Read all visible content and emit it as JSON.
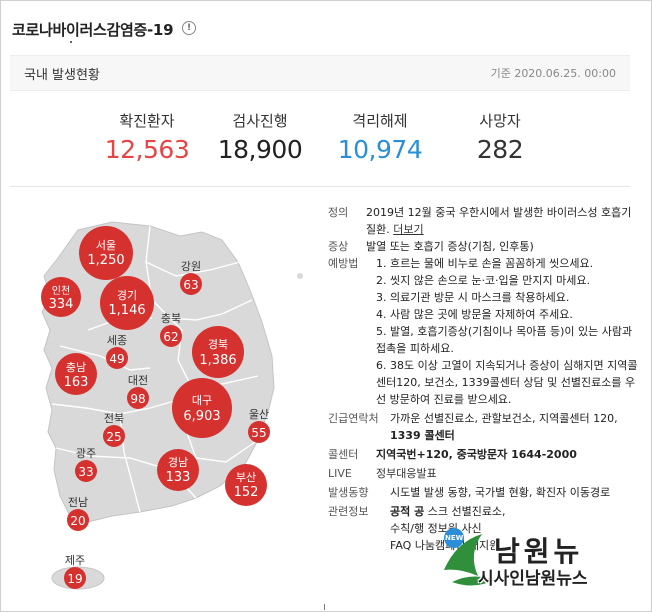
{
  "header": {
    "title": "코로나바이러스감염증-19",
    "info_icon": "!"
  },
  "subbar": {
    "title": "국내 발생현황",
    "date": "기준 2020.06.25. 00:00"
  },
  "stats": [
    {
      "label": "확진환자",
      "value": "12,563",
      "color": "#e64545"
    },
    {
      "label": "검사진행",
      "value": "18,900",
      "color": "#222222"
    },
    {
      "label": "격리해제",
      "value": "10,974",
      "color": "#2a8fd8"
    },
    {
      "label": "사망자",
      "value": "282",
      "color": "#333333"
    }
  ],
  "regions": [
    {
      "name": "서울",
      "count": "1,250",
      "big": true
    },
    {
      "name": "인천",
      "count": "334",
      "big": true
    },
    {
      "name": "경기",
      "count": "1,146",
      "big": true
    },
    {
      "name": "강원",
      "count": "63",
      "big": false
    },
    {
      "name": "충북",
      "count": "62",
      "big": false
    },
    {
      "name": "세종",
      "count": "49",
      "big": false
    },
    {
      "name": "경북",
      "count": "1,386",
      "big": true
    },
    {
      "name": "충남",
      "count": "163",
      "big": true
    },
    {
      "name": "대전",
      "count": "98",
      "big": false
    },
    {
      "name": "대구",
      "count": "6,903",
      "big": true
    },
    {
      "name": "전북",
      "count": "25",
      "big": false
    },
    {
      "name": "울산",
      "count": "55",
      "big": false
    },
    {
      "name": "광주",
      "count": "33",
      "big": false
    },
    {
      "name": "경남",
      "count": "133",
      "big": true
    },
    {
      "name": "부산",
      "count": "152",
      "big": true
    },
    {
      "name": "전남",
      "count": "20",
      "big": false
    },
    {
      "name": "제주",
      "count": "19",
      "big": false
    }
  ],
  "info": {
    "definition_key": "정의",
    "definition": "2019년 12월 중국 우한시에서 발생한 바이러스성 호흡기 질환.",
    "more_link": "더보기",
    "symptom_key": "증상",
    "symptom": "발열 또는 호흡기 증상(기침, 인후통)",
    "prevention_key": "예방법",
    "prevention": [
      "1. 흐르는 물에 비누로 손을 꼼꼼하게 씻으세요.",
      "2. 씻지 않은 손으로 눈·코·입을 만지지 마세요.",
      "3. 의료기관 방문 시 마스크를 착용하세요.",
      "4. 사람 많은 곳에 방문을 자제하여 주세요.",
      "5. 발열, 호흡기증상(기침이나 목아픔 등)이 있는 사람과 접촉을 피하세요.",
      "6. 38도 이상 고열이 지속되거나 증상이 심해지면 지역콜센터120, 보건소, 1339콜센터 상담 및 선별진료소를 우선 방문하여 진료를 받으세요."
    ],
    "emergency_key": "긴급연락처",
    "emergency": "가까운 선별진료소, 관할보건소, 지역콜센터 120,",
    "emergency_bold": "1339 콜센터",
    "callcenter_key": "콜센터",
    "callcenter": "지역국번+120, 중국방문자 1644-2000",
    "live_key": "LIVE",
    "live": "정부대응발표",
    "trend_key": "발생동향",
    "trend": "시도별 발생 동향, 국가별 현황, 확진자 이동경로",
    "related_key": "관련정보",
    "related_bold": "공적 공",
    "related_1": "스크 ",
    "related_2": " 선별진료소,",
    "related_3": "수칙/행",
    "related_4": "정보원 ",
    "related_5": "사신",
    "related_6": "FAQ",
    "related_7": "나눔캠페인",
    "related_8": "재지원"
  },
  "watermark": {
    "main": "남원뉴",
    "sub": "시사인남원뉴스",
    "badge": "NEW"
  }
}
